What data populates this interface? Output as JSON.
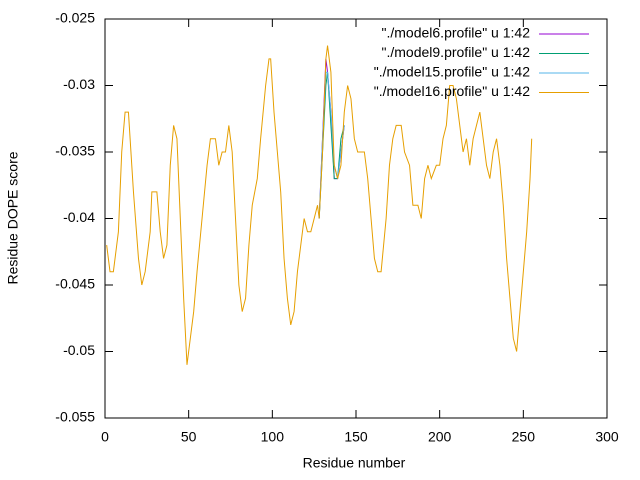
{
  "chart_data": {
    "type": "line",
    "xlabel": "Residue number",
    "ylabel": "Residue DOPE score",
    "xlim": [
      0,
      300
    ],
    "xticks": [
      0,
      50,
      100,
      150,
      200,
      250,
      300
    ],
    "ylim": [
      -0.055,
      -0.025
    ],
    "yticks": [
      -0.055,
      -0.05,
      -0.045,
      -0.04,
      -0.035,
      -0.03,
      -0.025
    ],
    "legend": "top-right",
    "x": [
      1,
      3,
      5,
      8,
      10,
      12,
      14,
      17,
      20,
      22,
      24,
      27,
      28,
      31,
      33,
      35,
      37,
      39,
      41,
      43,
      45,
      47,
      49,
      51,
      53,
      55,
      58,
      61,
      63,
      66,
      68,
      70,
      72,
      74,
      76,
      78,
      80,
      82,
      84,
      86,
      88,
      91,
      93,
      96,
      98,
      99,
      101,
      103,
      105,
      107,
      109,
      111,
      113,
      115,
      117,
      119,
      121,
      123,
      125,
      127,
      128,
      130,
      132,
      133,
      135,
      137,
      139,
      141,
      143,
      145,
      147,
      149,
      151,
      155,
      157,
      159,
      161,
      163,
      165,
      168,
      170,
      172,
      174,
      177,
      179,
      182,
      184,
      187,
      189,
      191,
      193,
      195,
      198,
      200,
      202,
      204,
      206,
      208,
      210,
      212,
      214,
      216,
      218,
      220,
      222,
      224,
      226,
      228,
      230,
      232,
      234,
      236,
      238,
      240,
      242,
      244,
      246,
      248,
      250,
      252,
      254,
      255
    ],
    "series": [
      {
        "name": "\"./model6.profile\" u 1:42",
        "color": "#9400d3",
        "values": [
          null,
          null,
          null,
          null,
          null,
          null,
          null,
          null,
          null,
          null,
          null,
          null,
          null,
          null,
          null,
          null,
          null,
          null,
          null,
          null,
          null,
          null,
          null,
          null,
          null,
          null,
          null,
          null,
          null,
          null,
          null,
          null,
          null,
          null,
          null,
          null,
          null,
          null,
          null,
          null,
          null,
          null,
          null,
          null,
          null,
          null,
          null,
          null,
          null,
          null,
          null,
          null,
          null,
          null,
          null,
          null,
          null,
          null,
          null,
          null,
          -0.04,
          -0.034,
          -0.028,
          -0.029,
          -0.032,
          -0.037,
          -0.037,
          -0.035,
          -0.033,
          null,
          null,
          null,
          null,
          null,
          null,
          null,
          null,
          null,
          null,
          null,
          null,
          null,
          null,
          null,
          null,
          null,
          null,
          null,
          null,
          null,
          null,
          null,
          null,
          null,
          null,
          null,
          null,
          null,
          null,
          null,
          null,
          null,
          null,
          null,
          null,
          null,
          null,
          null,
          null,
          null,
          null,
          null,
          null,
          null,
          null,
          null,
          null,
          null,
          null,
          null,
          null,
          null
        ]
      },
      {
        "name": "\"./model9.profile\" u 1:42",
        "color": "#009e73",
        "values": [
          null,
          null,
          null,
          null,
          null,
          null,
          null,
          null,
          null,
          null,
          null,
          null,
          null,
          null,
          null,
          null,
          null,
          null,
          null,
          null,
          null,
          null,
          null,
          null,
          null,
          null,
          null,
          null,
          null,
          null,
          null,
          null,
          null,
          null,
          null,
          null,
          null,
          null,
          null,
          null,
          null,
          null,
          null,
          null,
          null,
          null,
          null,
          null,
          null,
          null,
          null,
          null,
          null,
          null,
          null,
          null,
          null,
          null,
          null,
          null,
          -0.04,
          -0.035,
          -0.03,
          -0.029,
          -0.033,
          -0.037,
          -0.037,
          -0.034,
          -0.033,
          null,
          null,
          null,
          null,
          null,
          null,
          null,
          null,
          null,
          null,
          null,
          null,
          null,
          null,
          null,
          null,
          null,
          null,
          null,
          null,
          null,
          null,
          null,
          null,
          null,
          null,
          null,
          null,
          null,
          null,
          null,
          null,
          null,
          null,
          null,
          null,
          null,
          null,
          null,
          null,
          null,
          null,
          null,
          null,
          null,
          null,
          null,
          null,
          null,
          null,
          null,
          null,
          null
        ]
      },
      {
        "name": "\"./model15.profile\" u 1:42",
        "color": "#56b4e9",
        "values": [
          null,
          null,
          null,
          null,
          null,
          null,
          null,
          null,
          null,
          null,
          null,
          null,
          null,
          null,
          null,
          null,
          null,
          null,
          null,
          null,
          null,
          null,
          null,
          null,
          null,
          null,
          null,
          null,
          null,
          null,
          null,
          null,
          null,
          null,
          null,
          null,
          null,
          null,
          null,
          null,
          null,
          null,
          null,
          null,
          null,
          null,
          null,
          null,
          null,
          null,
          null,
          null,
          null,
          null,
          null,
          null,
          null,
          null,
          null,
          null,
          -0.04,
          -0.034,
          -0.029,
          -0.029,
          -0.032,
          -0.036,
          -0.037,
          -0.035,
          -0.033,
          null,
          null,
          null,
          null,
          null,
          null,
          null,
          null,
          null,
          null,
          null,
          null,
          null,
          null,
          null,
          null,
          null,
          null,
          null,
          null,
          null,
          null,
          null,
          null,
          null,
          null,
          null,
          null,
          null,
          null,
          null,
          null,
          null,
          null,
          null,
          null,
          null,
          null,
          null,
          null,
          null,
          null,
          null,
          null,
          null,
          null,
          null,
          null,
          null,
          null,
          null,
          null,
          null
        ]
      },
      {
        "name": "\"./model16.profile\" u 1:42",
        "color": "#e69f00",
        "values": [
          -0.042,
          -0.044,
          -0.044,
          -0.041,
          -0.035,
          -0.032,
          -0.032,
          -0.038,
          -0.043,
          -0.045,
          -0.044,
          -0.041,
          -0.038,
          -0.038,
          -0.041,
          -0.043,
          -0.042,
          -0.036,
          -0.033,
          -0.034,
          -0.04,
          -0.046,
          -0.051,
          -0.049,
          -0.047,
          -0.044,
          -0.04,
          -0.036,
          -0.034,
          -0.034,
          -0.036,
          -0.035,
          -0.035,
          -0.033,
          -0.035,
          -0.04,
          -0.045,
          -0.047,
          -0.046,
          -0.042,
          -0.039,
          -0.037,
          -0.034,
          -0.03,
          -0.028,
          -0.028,
          -0.032,
          -0.035,
          -0.038,
          -0.043,
          -0.046,
          -0.048,
          -0.047,
          -0.044,
          -0.042,
          -0.04,
          -0.041,
          -0.041,
          -0.04,
          -0.039,
          -0.04,
          -0.035,
          -0.028,
          -0.027,
          -0.029,
          -0.036,
          -0.037,
          -0.036,
          -0.032,
          -0.03,
          -0.031,
          -0.034,
          -0.035,
          -0.035,
          -0.037,
          -0.04,
          -0.043,
          -0.044,
          -0.044,
          -0.04,
          -0.036,
          -0.034,
          -0.033,
          -0.033,
          -0.035,
          -0.036,
          -0.039,
          -0.039,
          -0.04,
          -0.037,
          -0.036,
          -0.037,
          -0.036,
          -0.036,
          -0.034,
          -0.033,
          -0.03,
          -0.03,
          -0.031,
          -0.033,
          -0.035,
          -0.034,
          -0.036,
          -0.034,
          -0.033,
          -0.032,
          -0.034,
          -0.036,
          -0.037,
          -0.035,
          -0.034,
          -0.036,
          -0.039,
          -0.043,
          -0.046,
          -0.049,
          -0.05,
          -0.047,
          -0.044,
          -0.041,
          -0.037,
          -0.034
        ]
      }
    ]
  }
}
